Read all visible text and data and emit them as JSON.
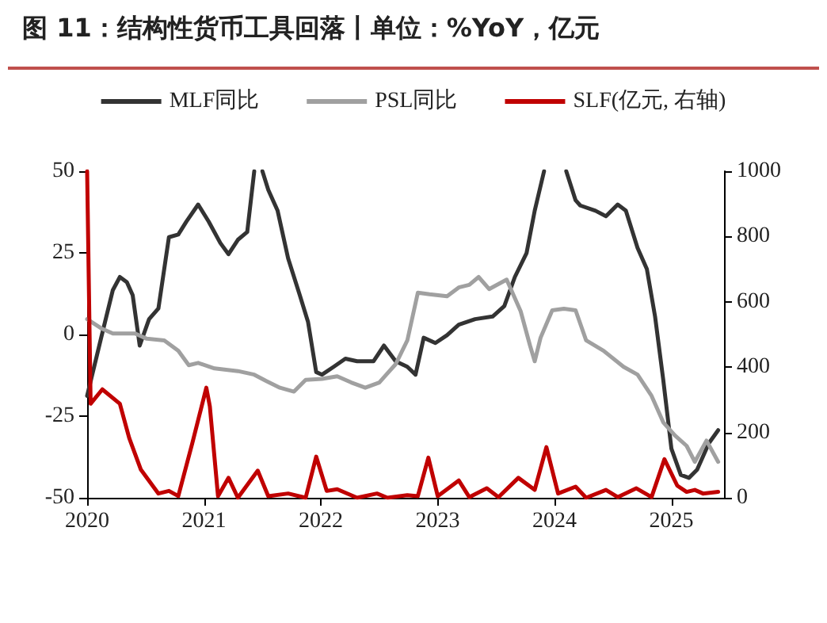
{
  "chart_data": {
    "type": "line",
    "title": "图 11：结构性货币工具回落丨单位：%YoY，亿元",
    "xlim": [
      2020,
      2025.45
    ],
    "xticks": [
      2020,
      2021,
      2022,
      2023,
      2024,
      2025
    ],
    "ylim": [
      -50,
      50
    ],
    "yticks": [
      -50,
      -25,
      0,
      25,
      50
    ],
    "y2lim": [
      0,
      1000
    ],
    "y2ticks": [
      0,
      200,
      400,
      600,
      800,
      1000
    ],
    "legend": "top",
    "grid": false,
    "marker": "none",
    "line_style": "solid",
    "series": [
      {
        "name": "MLF同比",
        "color": "#333333",
        "x": [
          2020.0,
          2020.12,
          2020.22,
          2020.28,
          2020.34,
          2020.39,
          2020.45,
          2020.53,
          2020.61,
          2020.7,
          2020.78,
          2020.85,
          2020.95,
          2021.04,
          2021.14,
          2021.21,
          2021.29,
          2021.37,
          2021.43,
          2021.47,
          2021.5,
          2021.55,
          2021.63,
          2021.72,
          2021.82,
          2021.89,
          2021.96,
          2022.01,
          2022.11,
          2022.21,
          2022.31,
          2022.45,
          2022.54,
          2022.64,
          2022.74,
          2022.81,
          2022.88,
          2022.98,
          2023.08,
          2023.18,
          2023.32,
          2023.47,
          2023.57,
          2023.66,
          2023.76,
          2023.83,
          2023.91,
          2024.0,
          2024.1,
          2024.18,
          2024.22,
          2024.35,
          2024.44,
          2024.54,
          2024.61,
          2024.71,
          2024.79,
          2024.86,
          2024.93,
          2025.0,
          2025.08,
          2025.15,
          2025.22,
          2025.32,
          2025.4
        ],
        "values": [
          -18.8,
          -1,
          13.6,
          17.6,
          16,
          12,
          -3.4,
          4.7,
          8,
          29.8,
          30.6,
          34.6,
          39.8,
          34.6,
          28,
          24.6,
          29,
          31.4,
          50,
          null,
          50,
          44.3,
          37.9,
          23.3,
          12,
          3.9,
          -11.5,
          -12.3,
          -9.9,
          -7.4,
          -8.2,
          -8.2,
          -3.4,
          -8.2,
          -9.9,
          -12.3,
          -1,
          -2.6,
          -0.2,
          3,
          4.7,
          5.5,
          8.7,
          17.6,
          24.9,
          37.9,
          50,
          null,
          50,
          41.1,
          39.5,
          37.9,
          36.2,
          39.8,
          37.9,
          26.5,
          20,
          5.5,
          -13.9,
          -35,
          -43,
          -43.9,
          -41.4,
          -33.3,
          -29.3
        ]
      },
      {
        "name": "PSL同比",
        "color": "#a0a0a0",
        "x": [
          2020.0,
          2020.12,
          2020.22,
          2020.41,
          2020.51,
          2020.66,
          2020.78,
          2020.87,
          2020.95,
          2021.09,
          2021.29,
          2021.43,
          2021.53,
          2021.65,
          2021.77,
          2021.87,
          2022.01,
          2022.14,
          2022.26,
          2022.38,
          2022.5,
          2022.56,
          2022.64,
          2022.74,
          2022.83,
          2022.93,
          2023.08,
          2023.18,
          2023.27,
          2023.35,
          2023.44,
          2023.59,
          2023.71,
          2023.79,
          2023.83,
          2023.88,
          2023.98,
          2024.08,
          2024.18,
          2024.27,
          2024.42,
          2024.59,
          2024.71,
          2024.83,
          2024.93,
          2025.03,
          2025.13,
          2025.2,
          2025.3,
          2025.4
        ],
        "values": [
          4.7,
          1.9,
          0.3,
          0.3,
          -1.3,
          -1.8,
          -5,
          -9.4,
          -8.7,
          -10.4,
          -11.2,
          -12.3,
          -14.2,
          -16.3,
          -17.5,
          -13.9,
          -13.6,
          -12.8,
          -14.7,
          -16.3,
          -14.7,
          -12.3,
          -9.1,
          -1.8,
          12.8,
          12.3,
          11.7,
          14.4,
          15.2,
          17.6,
          13.9,
          16.8,
          7.1,
          -3.4,
          -8.2,
          -1,
          7.4,
          7.9,
          7.4,
          -1.8,
          -5,
          -9.9,
          -12.3,
          -18.8,
          -26.9,
          -30.9,
          -34.1,
          -39,
          -32.5,
          -39
        ]
      },
      {
        "name": "SLF(亿元, 右轴)",
        "color": "#c00000",
        "axis": "y2",
        "x": [
          2020.0,
          2020.03,
          2020.13,
          2020.28,
          2020.36,
          2020.46,
          2020.61,
          2020.7,
          2020.78,
          2020.9,
          2021.02,
          2021.05,
          2021.12,
          2021.21,
          2021.29,
          2021.46,
          2021.55,
          2021.72,
          2021.87,
          2021.96,
          2022.05,
          2022.14,
          2022.31,
          2022.48,
          2022.57,
          2022.74,
          2022.83,
          2022.92,
          2023.0,
          2023.18,
          2023.27,
          2023.42,
          2023.52,
          2023.69,
          2023.83,
          2023.93,
          2024.03,
          2024.18,
          2024.27,
          2024.44,
          2024.54,
          2024.7,
          2024.83,
          2024.94,
          2025.05,
          2025.13,
          2025.2,
          2025.27,
          2025.4
        ],
        "values": [
          1000,
          288,
          332,
          288,
          183,
          86,
          13,
          21,
          5,
          167,
          337,
          280,
          5,
          61,
          0,
          83,
          5,
          13,
          0,
          126,
          21,
          26,
          0,
          13,
          0,
          8,
          5,
          123,
          5,
          53,
          2,
          29,
          2,
          61,
          24,
          155,
          13,
          34,
          0,
          24,
          2,
          29,
          2,
          118,
          37,
          18,
          24,
          13,
          18
        ]
      }
    ]
  }
}
